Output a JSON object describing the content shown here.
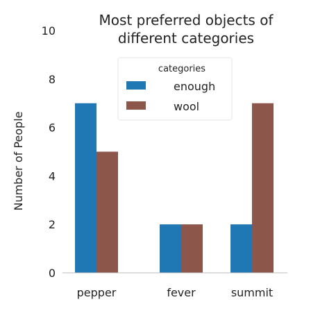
{
  "chart_data": {
    "type": "bar",
    "title": "Most preferred objects of different categories",
    "title_lines": [
      "Most preferred objects of",
      "different categories"
    ],
    "xlabel": "",
    "ylabel": "Number of People",
    "categories": [
      "pepper",
      "fever",
      "summit"
    ],
    "series": [
      {
        "name": "enough",
        "values": [
          7,
          2,
          2
        ],
        "color": "#1f77b4"
      },
      {
        "name": "wool",
        "values": [
          5,
          2,
          7
        ],
        "color": "#8c564b"
      }
    ],
    "ylim": [
      0,
      10
    ],
    "yticks": [
      "0",
      "2",
      "4",
      "6",
      "8",
      "10"
    ],
    "grid": false,
    "legend": {
      "title": "categories",
      "placement": "top-center"
    }
  }
}
